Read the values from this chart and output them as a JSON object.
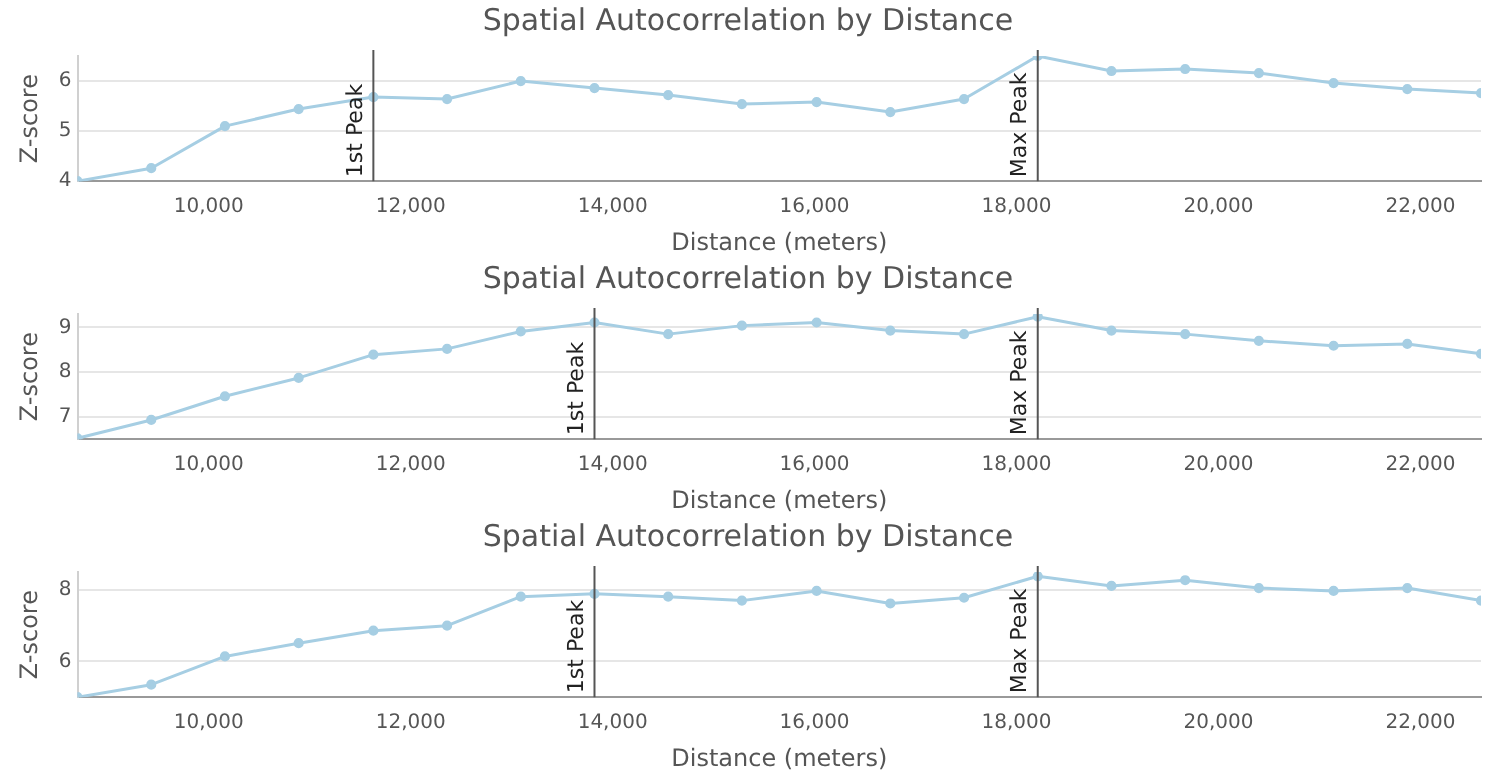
{
  "chart_data": [
    {
      "type": "line",
      "title": "Spatial Autocorrelation by Distance",
      "xlabel": "Distance (meters)",
      "ylabel": "Z-score",
      "x": [
        8700,
        9430,
        10160,
        10890,
        11630,
        12360,
        13090,
        13820,
        14550,
        15280,
        16020,
        16750,
        17480,
        18210,
        18940,
        19670,
        20400,
        21140,
        21870,
        22600
      ],
      "series": [
        {
          "color": "#a6cee3",
          "values": [
            4.0,
            4.26,
            5.1,
            5.44,
            5.68,
            5.64,
            6.0,
            5.86,
            5.72,
            5.54,
            5.58,
            5.38,
            5.64,
            6.5,
            6.2,
            6.24,
            6.16,
            5.96,
            5.84,
            5.76
          ]
        }
      ],
      "xlim": [
        8700,
        22600
      ],
      "xticks": [
        {
          "value": 10000,
          "label": "10,000"
        },
        {
          "value": 12000,
          "label": "12,000"
        },
        {
          "value": 14000,
          "label": "14,000"
        },
        {
          "value": 16000,
          "label": "16,000"
        },
        {
          "value": 18000,
          "label": "18,000"
        },
        {
          "value": 20000,
          "label": "20,000"
        },
        {
          "value": 22000,
          "label": "22,000"
        }
      ],
      "ylim": [
        4,
        6.5
      ],
      "yticks": [
        4,
        5,
        6
      ],
      "ref_lines": [
        {
          "axis": "x",
          "value": 11630,
          "label": "1st Peak",
          "color": "#555555"
        },
        {
          "axis": "x",
          "value": 18210,
          "label": "Max Peak",
          "color": "#555555"
        }
      ],
      "grid": "y",
      "legend": false,
      "marker": "circle",
      "line_style": "solid"
    },
    {
      "type": "line",
      "title": "Spatial Autocorrelation by Distance",
      "xlabel": "Distance (meters)",
      "ylabel": "Z-score",
      "x": [
        8700,
        9430,
        10160,
        10890,
        11630,
        12360,
        13090,
        13820,
        14550,
        15280,
        16020,
        16750,
        17480,
        18210,
        18940,
        19670,
        20400,
        21140,
        21870,
        22600
      ],
      "series": [
        {
          "color": "#a6cee3",
          "values": [
            6.52,
            6.93,
            7.46,
            7.87,
            8.39,
            8.52,
            8.91,
            9.11,
            8.85,
            9.04,
            9.11,
            8.93,
            8.85,
            9.24,
            8.93,
            8.85,
            8.7,
            8.59,
            8.63,
            8.41
          ]
        }
      ],
      "xlim": [
        8700,
        22600
      ],
      "xticks": [
        {
          "value": 10000,
          "label": "10,000"
        },
        {
          "value": 12000,
          "label": "12,000"
        },
        {
          "value": 14000,
          "label": "14,000"
        },
        {
          "value": 16000,
          "label": "16,000"
        },
        {
          "value": 18000,
          "label": "18,000"
        },
        {
          "value": 20000,
          "label": "20,000"
        },
        {
          "value": 22000,
          "label": "22,000"
        }
      ],
      "ylim": [
        6.5,
        9.3
      ],
      "yticks": [
        7,
        8,
        9
      ],
      "ref_lines": [
        {
          "axis": "x",
          "value": 13820,
          "label": "1st Peak",
          "color": "#555555"
        },
        {
          "axis": "x",
          "value": 18210,
          "label": "Max Peak",
          "color": "#555555"
        }
      ],
      "grid": "y",
      "legend": false,
      "marker": "circle",
      "line_style": "solid"
    },
    {
      "type": "line",
      "title": "Spatial Autocorrelation by Distance",
      "xlabel": "Distance (meters)",
      "ylabel": "Z-score",
      "x": [
        8700,
        9430,
        10160,
        10890,
        11630,
        12360,
        13090,
        13820,
        14550,
        15280,
        16020,
        16750,
        17480,
        18210,
        18940,
        19670,
        20400,
        21140,
        21870,
        22600
      ],
      "series": [
        {
          "color": "#a6cee3",
          "values": [
            5.0,
            5.35,
            6.14,
            6.51,
            6.86,
            7.0,
            7.81,
            7.89,
            7.81,
            7.7,
            7.97,
            7.62,
            7.78,
            8.38,
            8.11,
            8.27,
            8.05,
            7.97,
            8.05,
            7.7
          ]
        }
      ],
      "xlim": [
        8700,
        22600
      ],
      "xticks": [
        {
          "value": 10000,
          "label": "10,000"
        },
        {
          "value": 12000,
          "label": "12,000"
        },
        {
          "value": 14000,
          "label": "14,000"
        },
        {
          "value": 16000,
          "label": "16,000"
        },
        {
          "value": 18000,
          "label": "18,000"
        },
        {
          "value": 20000,
          "label": "20,000"
        },
        {
          "value": 22000,
          "label": "22,000"
        }
      ],
      "ylim": [
        5,
        8.5
      ],
      "yticks": [
        6,
        8
      ],
      "ref_lines": [
        {
          "axis": "x",
          "value": 13820,
          "label": "1st Peak",
          "color": "#555555"
        },
        {
          "axis": "x",
          "value": 18210,
          "label": "Max Peak",
          "color": "#555555"
        }
      ],
      "grid": "y",
      "legend": false,
      "marker": "circle",
      "line_style": "solid"
    }
  ]
}
